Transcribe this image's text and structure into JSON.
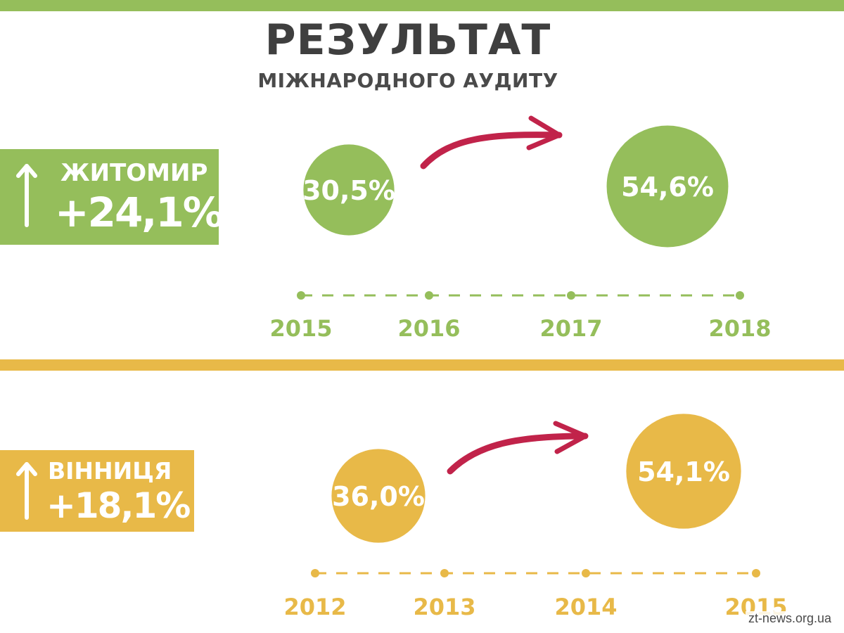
{
  "title": "РЕЗУЛЬТАТ",
  "subtitle": "МІЖНАРОДНОГО АУДИТУ",
  "watermark": "zt-news.org.ua",
  "colors": {
    "green": "#95be5b",
    "yellow": "#e8b948",
    "arrow": "#c1234a",
    "text": "#3f3f3f"
  },
  "icons": {
    "badge_arrow": "up-arrow-icon",
    "transition_arrow": "curved-arrow-icon"
  },
  "chart_data": [
    {
      "type": "bubble-timeline",
      "city": "ЖИТОМИР",
      "change": "+24,1%",
      "color": "#95be5b",
      "years": [
        "2015",
        "2016",
        "2017",
        "2018"
      ],
      "bubbles": [
        {
          "period": "2015–2016",
          "value": 30.5,
          "label": "30,5%"
        },
        {
          "period": "2017–2018",
          "value": 54.6,
          "label": "54,6%"
        }
      ]
    },
    {
      "type": "bubble-timeline",
      "city": "ВІННИЦЯ",
      "change": "+18,1%",
      "color": "#e8b948",
      "years": [
        "2012",
        "2013",
        "2014",
        "2015"
      ],
      "bubbles": [
        {
          "period": "2012–2013",
          "value": 36.0,
          "label": "36,0%"
        },
        {
          "period": "2014–2015",
          "value": 54.1,
          "label": "54,1%"
        }
      ]
    }
  ]
}
